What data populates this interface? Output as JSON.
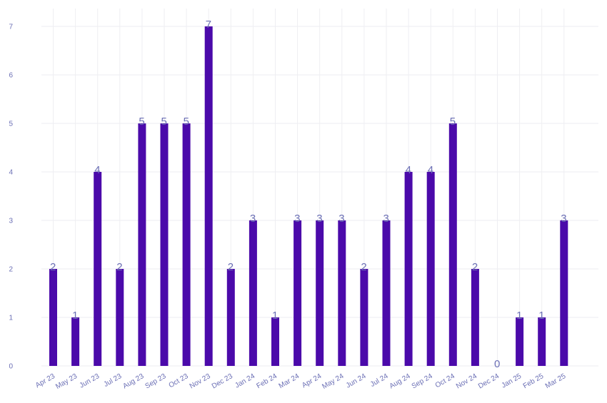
{
  "chart_data": {
    "type": "bar",
    "categories": [
      "Apr 23",
      "May 23",
      "Jun 23",
      "Jul 23",
      "Aug 23",
      "Sep 23",
      "Oct 23",
      "Nov 23",
      "Dec 23",
      "Jan 24",
      "Feb 24",
      "Mar 24",
      "Apr 24",
      "May 24",
      "Jun 24",
      "Jul 24",
      "Aug 24",
      "Sep 24",
      "Oct 24",
      "Nov 24",
      "Dec 24",
      "Jan 25",
      "Feb 25",
      "Mar 25"
    ],
    "values": [
      2,
      1,
      4,
      2,
      5,
      5,
      5,
      7,
      2,
      3,
      1,
      3,
      3,
      3,
      2,
      3,
      4,
      4,
      5,
      2,
      0,
      1,
      1,
      3
    ],
    "yticks": [
      "0",
      "1",
      "2",
      "3",
      "4",
      "5",
      "6",
      "7"
    ],
    "ylim": [
      0,
      7
    ],
    "grid": true,
    "legend": "none",
    "colors": {
      "bar": "#4b0aaa",
      "label": "#6b6fb5",
      "tick": "#6b6fb5",
      "grid": "#eeeef2"
    }
  }
}
